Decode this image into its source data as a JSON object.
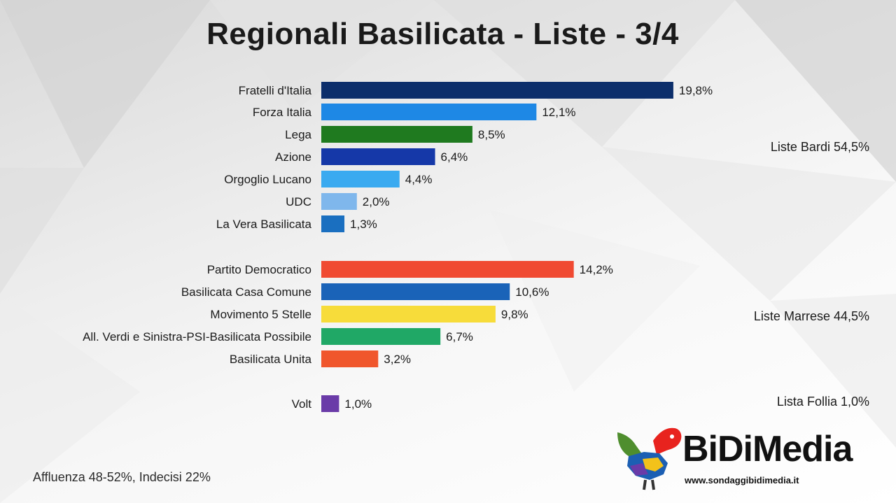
{
  "header": {
    "title": "Regionali Basilicata - Liste - 3/4"
  },
  "chart_data": {
    "type": "bar",
    "orientation": "horizontal",
    "unit": "%",
    "xlim": [
      0,
      20
    ],
    "categories": [
      "Fratelli d'Italia",
      "Forza Italia",
      "Lega",
      "Azione",
      "Orgoglio Lucano",
      "UDC",
      "La Vera Basilicata",
      "Partito Democratico",
      "Basilicata Casa Comune",
      "Movimento 5 Stelle",
      "All. Verdi e Sinistra-PSI-Basilicata Possibile",
      "Basilicata Unita",
      "Volt"
    ],
    "values": [
      19.8,
      12.1,
      8.5,
      6.4,
      4.4,
      2.0,
      1.3,
      14.2,
      10.6,
      9.8,
      6.7,
      3.2,
      1.0
    ],
    "value_labels": [
      "19,8%",
      "12,1%",
      "8,5%",
      "6,4%",
      "4,4%",
      "2,0%",
      "1,3%",
      "14,2%",
      "10,6%",
      "9,8%",
      "6,7%",
      "3,2%",
      "1,0%"
    ],
    "colors": [
      "#0c2e6b",
      "#1e88e5",
      "#1f7a1f",
      "#1538a8",
      "#3aaaf0",
      "#7fb7ec",
      "#1a6fc0",
      "#f04a32",
      "#1a63b8",
      "#f7dc3a",
      "#20a866",
      "#f0562c",
      "#6a3ba8"
    ],
    "groups": [
      {
        "label": "Liste Bardi 54,5%",
        "members": [
          0,
          1,
          2,
          3,
          4,
          5,
          6
        ]
      },
      {
        "label": "Liste Marrese 44,5%",
        "members": [
          7,
          8,
          9,
          10,
          11
        ]
      },
      {
        "label": "Lista Follia 1,0%",
        "members": [
          12
        ]
      }
    ],
    "grid": false,
    "legend": "none"
  },
  "footer": {
    "note": "Affluenza 48-52%, Indecisi 22%"
  },
  "brand": {
    "name": "BiDiMedia",
    "url": "www.sondaggibidimedia.it"
  }
}
